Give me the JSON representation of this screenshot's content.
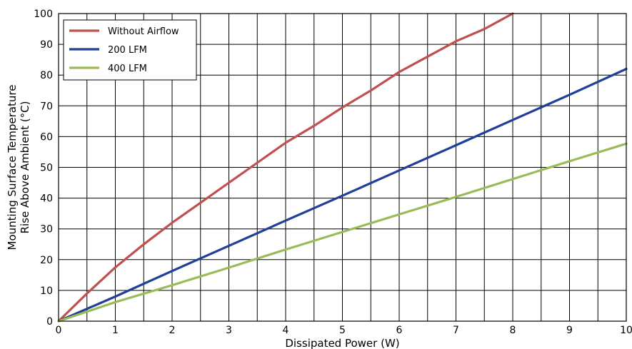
{
  "chart_data": {
    "type": "line",
    "xlabel": "Dissipated Power (W)",
    "ylabel_lines": [
      "Mounting Surface Temperature",
      "Rise Above  Ambient (°C)"
    ],
    "xlim": [
      0,
      10
    ],
    "ylim": [
      0,
      100
    ],
    "x_ticks": [
      "0",
      "1",
      "2",
      "3",
      "4",
      "5",
      "6",
      "7",
      "8",
      "9",
      "10"
    ],
    "y_ticks": [
      "0",
      "10",
      "20",
      "30",
      "40",
      "50",
      "60",
      "70",
      "80",
      "90",
      "100"
    ],
    "x_minor_step": 0.5,
    "y_minor_step": 10,
    "grid": true,
    "legend_position": "top-left",
    "series": [
      {
        "name": "Without Airflow",
        "color": "#c0504d",
        "x": [
          0,
          0.5,
          1,
          1.5,
          2,
          2.5,
          3,
          3.5,
          4,
          4.5,
          5,
          5.5,
          6,
          6.5,
          7,
          7.5,
          8
        ],
        "y": [
          0,
          9,
          17.5,
          25,
          32,
          38.5,
          45,
          51.5,
          58,
          63.5,
          69.5,
          75,
          81,
          86,
          91,
          95,
          100
        ]
      },
      {
        "name": "200 LFM",
        "color": "#1f3f99",
        "x": [
          0,
          1,
          2,
          3,
          4,
          5,
          6,
          7,
          8,
          9,
          10
        ],
        "y": [
          0,
          8,
          16.3,
          24.5,
          32.7,
          40.8,
          49,
          57.2,
          65.4,
          73.6,
          82
        ]
      },
      {
        "name": "400 LFM",
        "color": "#9bbb59",
        "x": [
          0,
          1,
          2,
          3,
          4,
          5,
          6,
          7,
          8,
          9,
          10
        ],
        "y": [
          0,
          6.2,
          11.7,
          17.4,
          23.3,
          29,
          34.7,
          40.4,
          46.2,
          52,
          57.7
        ]
      }
    ]
  }
}
